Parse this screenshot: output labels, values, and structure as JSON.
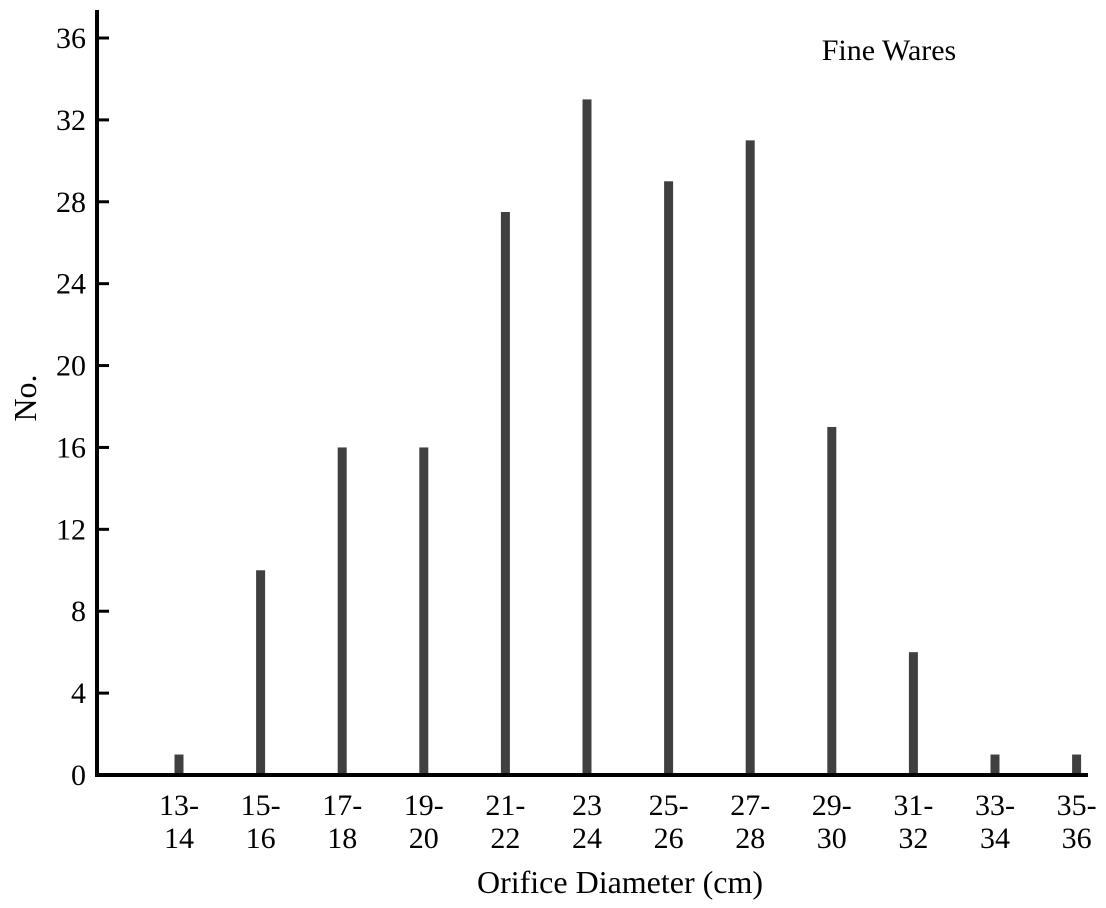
{
  "chart_data": {
    "type": "bar",
    "title": "",
    "annotation": "Fine Wares",
    "xlabel": "Orifice Diameter (cm)",
    "ylabel": "No.",
    "categories": [
      {
        "line1": "13-",
        "line2": "14"
      },
      {
        "line1": "15-",
        "line2": "16"
      },
      {
        "line1": "17-",
        "line2": "18"
      },
      {
        "line1": "19-",
        "line2": "20"
      },
      {
        "line1": "21-",
        "line2": "22"
      },
      {
        "line1": "23",
        "line2": "24"
      },
      {
        "line1": "25-",
        "line2": "26"
      },
      {
        "line1": "27-",
        "line2": "28"
      },
      {
        "line1": "29-",
        "line2": "30"
      },
      {
        "line1": "31-",
        "line2": "32"
      },
      {
        "line1": "33-",
        "line2": "34"
      },
      {
        "line1": "35-",
        "line2": "36"
      }
    ],
    "values": [
      1,
      10,
      16,
      16,
      27.5,
      33,
      29,
      31,
      17,
      6,
      1,
      1
    ],
    "yticks": [
      0,
      4,
      8,
      12,
      16,
      20,
      24,
      28,
      32,
      36
    ],
    "ylim": [
      0,
      37.5
    ],
    "grid": false,
    "legend": "none",
    "bar_color": "#404040",
    "axis_color": "#000000"
  }
}
